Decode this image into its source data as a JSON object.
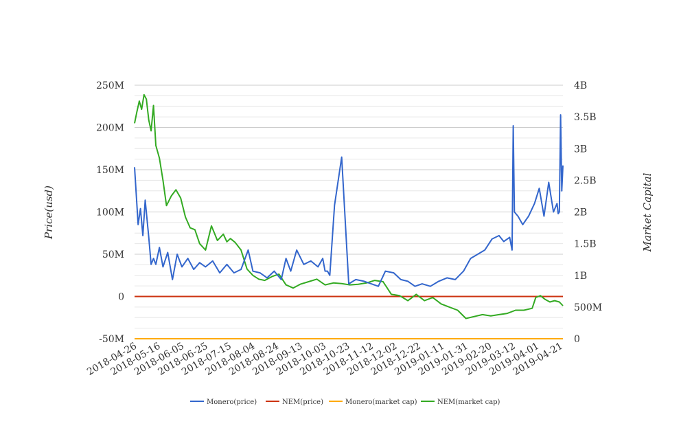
{
  "chart_data": {
    "type": "line",
    "ylabel_left": "Price(usd)",
    "ylabel_right": "Market Capital",
    "ylim_left": [
      -50000000,
      250000000
    ],
    "ylim_right": [
      0,
      4000000000
    ],
    "yticks_left": [
      "-50M",
      "0",
      "50M",
      "100M",
      "150M",
      "200M",
      "250M"
    ],
    "yticks_right": [
      "0",
      "500M",
      "1B",
      "1.5B",
      "2B",
      "2.5B",
      "3B",
      "3.5B",
      "4B"
    ],
    "x_tick_labels": [
      "2018-04-26",
      "2018-05-16",
      "2018-06-05",
      "2018-06-25",
      "2018-07-15",
      "2018-08-04",
      "2018-08-24",
      "2018-09-13",
      "2018-10-03",
      "2018-10-23",
      "2018-11-12",
      "2018-12-02",
      "2018-12-22",
      "2019-01-11",
      "2019-01-31",
      "2019-02-20",
      "2019-03-12",
      "2019-04-01",
      "2019-04-21"
    ],
    "x_range": [
      "2018-04-26",
      "2019-04-23"
    ],
    "grid": true,
    "legend_position": "bottom",
    "series": [
      {
        "name": "Monero(price)",
        "axis": "left",
        "color": "#3366cc",
        "x": [
          "2018-04-26",
          "2018-04-29",
          "2018-05-01",
          "2018-05-03",
          "2018-05-05",
          "2018-05-08",
          "2018-05-10",
          "2018-05-12",
          "2018-05-14",
          "2018-05-17",
          "2018-05-20",
          "2018-05-24",
          "2018-05-28",
          "2018-06-01",
          "2018-06-05",
          "2018-06-10",
          "2018-06-15",
          "2018-06-20",
          "2018-06-25",
          "2018-07-01",
          "2018-07-07",
          "2018-07-13",
          "2018-07-19",
          "2018-07-25",
          "2018-07-31",
          "2018-08-04",
          "2018-08-10",
          "2018-08-16",
          "2018-08-22",
          "2018-08-28",
          "2018-09-01",
          "2018-09-05",
          "2018-09-10",
          "2018-09-16",
          "2018-09-22",
          "2018-09-28",
          "2018-10-02",
          "2018-10-04",
          "2018-10-06",
          "2018-10-08",
          "2018-10-12",
          "2018-10-18",
          "2018-10-24",
          "2018-10-30",
          "2018-11-06",
          "2018-11-12",
          "2018-11-18",
          "2018-11-24",
          "2018-12-01",
          "2018-12-07",
          "2018-12-13",
          "2018-12-19",
          "2018-12-25",
          "2019-01-01",
          "2019-01-08",
          "2019-01-15",
          "2019-01-22",
          "2019-01-29",
          "2019-02-04",
          "2019-02-10",
          "2019-02-16",
          "2019-02-22",
          "2019-02-28",
          "2019-03-04",
          "2019-03-09",
          "2019-03-11",
          "2019-03-12",
          "2019-03-13",
          "2019-03-16",
          "2019-03-20",
          "2019-03-25",
          "2019-03-30",
          "2019-04-03",
          "2019-04-07",
          "2019-04-11",
          "2019-04-15",
          "2019-04-18",
          "2019-04-19",
          "2019-04-20",
          "2019-04-21",
          "2019-04-22",
          "2019-04-23"
        ],
        "values": [
          153000000,
          85000000,
          104000000,
          72000000,
          114000000,
          70000000,
          38000000,
          45000000,
          38000000,
          58000000,
          35000000,
          52000000,
          20000000,
          50000000,
          35000000,
          45000000,
          32000000,
          40000000,
          35000000,
          42000000,
          28000000,
          38000000,
          28000000,
          32000000,
          55000000,
          30000000,
          28000000,
          22000000,
          30000000,
          20000000,
          45000000,
          30000000,
          55000000,
          38000000,
          42000000,
          35000000,
          45000000,
          30000000,
          30000000,
          25000000,
          108000000,
          165000000,
          15000000,
          20000000,
          18000000,
          15000000,
          12000000,
          30000000,
          28000000,
          20000000,
          18000000,
          12000000,
          15000000,
          12000000,
          18000000,
          22000000,
          20000000,
          30000000,
          45000000,
          50000000,
          55000000,
          68000000,
          72000000,
          65000000,
          70000000,
          55000000,
          202000000,
          100000000,
          95000000,
          85000000,
          95000000,
          110000000,
          128000000,
          95000000,
          135000000,
          100000000,
          110000000,
          98000000,
          100000000,
          215000000,
          125000000,
          155000000
        ]
      },
      {
        "name": "NEM(price)",
        "axis": "left",
        "color": "#cc3311",
        "x": [
          "2018-04-26",
          "2019-04-23"
        ],
        "values": [
          0,
          0
        ]
      },
      {
        "name": "Monero(market cap)",
        "axis": "left",
        "color": "#ffaa00",
        "x": [
          "2018-04-26",
          "2019-04-23"
        ],
        "values": [
          -50000000,
          -50000000
        ]
      },
      {
        "name": "NEM(market cap)",
        "axis": "right",
        "color": "#33aa22",
        "x": [
          "2018-04-26",
          "2018-04-28",
          "2018-04-30",
          "2018-05-02",
          "2018-05-04",
          "2018-05-06",
          "2018-05-08",
          "2018-05-10",
          "2018-05-12",
          "2018-05-14",
          "2018-05-17",
          "2018-05-20",
          "2018-05-23",
          "2018-05-27",
          "2018-05-31",
          "2018-06-04",
          "2018-06-08",
          "2018-06-12",
          "2018-06-16",
          "2018-06-20",
          "2018-06-25",
          "2018-06-30",
          "2018-07-05",
          "2018-07-10",
          "2018-07-13",
          "2018-07-16",
          "2018-07-20",
          "2018-07-25",
          "2018-07-30",
          "2018-08-04",
          "2018-08-09",
          "2018-08-14",
          "2018-08-20",
          "2018-08-26",
          "2018-09-01",
          "2018-09-07",
          "2018-09-13",
          "2018-09-20",
          "2018-09-27",
          "2018-10-04",
          "2018-10-11",
          "2018-10-18",
          "2018-10-25",
          "2018-11-01",
          "2018-11-08",
          "2018-11-15",
          "2018-11-22",
          "2018-11-29",
          "2018-12-06",
          "2018-12-13",
          "2018-12-20",
          "2018-12-27",
          "2019-01-03",
          "2019-01-10",
          "2019-01-17",
          "2019-01-24",
          "2019-01-31",
          "2019-02-07",
          "2019-02-14",
          "2019-02-21",
          "2019-02-28",
          "2019-03-07",
          "2019-03-14",
          "2019-03-21",
          "2019-03-28",
          "2019-03-31",
          "2019-04-04",
          "2019-04-08",
          "2019-04-12",
          "2019-04-16",
          "2019-04-20",
          "2019-04-23"
        ],
        "values": [
          3400000000,
          3580000000,
          3750000000,
          3620000000,
          3850000000,
          3780000000,
          3450000000,
          3280000000,
          3680000000,
          3050000000,
          2850000000,
          2500000000,
          2100000000,
          2250000000,
          2350000000,
          2220000000,
          1920000000,
          1750000000,
          1720000000,
          1500000000,
          1400000000,
          1780000000,
          1550000000,
          1650000000,
          1530000000,
          1580000000,
          1520000000,
          1400000000,
          1100000000,
          1000000000,
          940000000,
          920000000,
          980000000,
          1020000000,
          850000000,
          800000000,
          860000000,
          900000000,
          940000000,
          850000000,
          880000000,
          870000000,
          850000000,
          860000000,
          880000000,
          920000000,
          900000000,
          700000000,
          680000000,
          600000000,
          700000000,
          600000000,
          650000000,
          550000000,
          500000000,
          450000000,
          320000000,
          350000000,
          380000000,
          360000000,
          380000000,
          400000000,
          450000000,
          450000000,
          480000000,
          650000000,
          680000000,
          620000000,
          580000000,
          600000000,
          580000000,
          520000000
        ]
      }
    ]
  }
}
